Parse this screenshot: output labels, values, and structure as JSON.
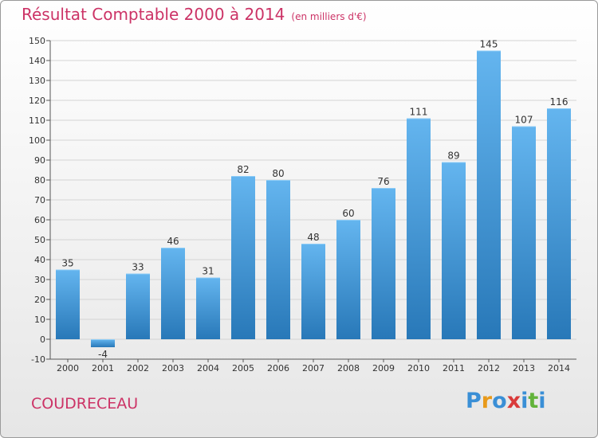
{
  "header": {
    "title": "Résultat Comptable 2000 à 2014",
    "unit": "(en milliers d'€)"
  },
  "footer": {
    "city": "COUDRECEAU",
    "logo_letters": [
      "P",
      "r",
      "o",
      "x",
      "i",
      "t",
      "i"
    ],
    "logo_colors": [
      "#3a8fd6",
      "#e89a1b",
      "#3a8fd6",
      "#d93a3a",
      "#3a8fd6",
      "#62b33a",
      "#3a8fd6"
    ]
  },
  "colors": {
    "bar_light": "#64b5ef",
    "bar_dark": "#2878b8",
    "title": "#cc3366",
    "grid": "#d4d4d4"
  },
  "chart_data": {
    "type": "bar",
    "categories": [
      "2000",
      "2001",
      "2002",
      "2003",
      "2004",
      "2005",
      "2006",
      "2007",
      "2008",
      "2009",
      "2010",
      "2011",
      "2012",
      "2013",
      "2014"
    ],
    "values": [
      35,
      -4,
      33,
      46,
      31,
      82,
      80,
      48,
      60,
      76,
      111,
      89,
      145,
      107,
      116
    ],
    "value_labels": [
      "35",
      "-4",
      "33",
      "46",
      "31",
      "82",
      "80",
      "48",
      "60",
      "76",
      "111",
      "89",
      "145",
      "107",
      "116"
    ],
    "yticks": [
      "-10",
      "0",
      "10",
      "20",
      "30",
      "40",
      "50",
      "60",
      "70",
      "80",
      "90",
      "100",
      "110",
      "120",
      "130",
      "140",
      "150"
    ],
    "ylim": [
      -10,
      150
    ],
    "grid": true
  }
}
